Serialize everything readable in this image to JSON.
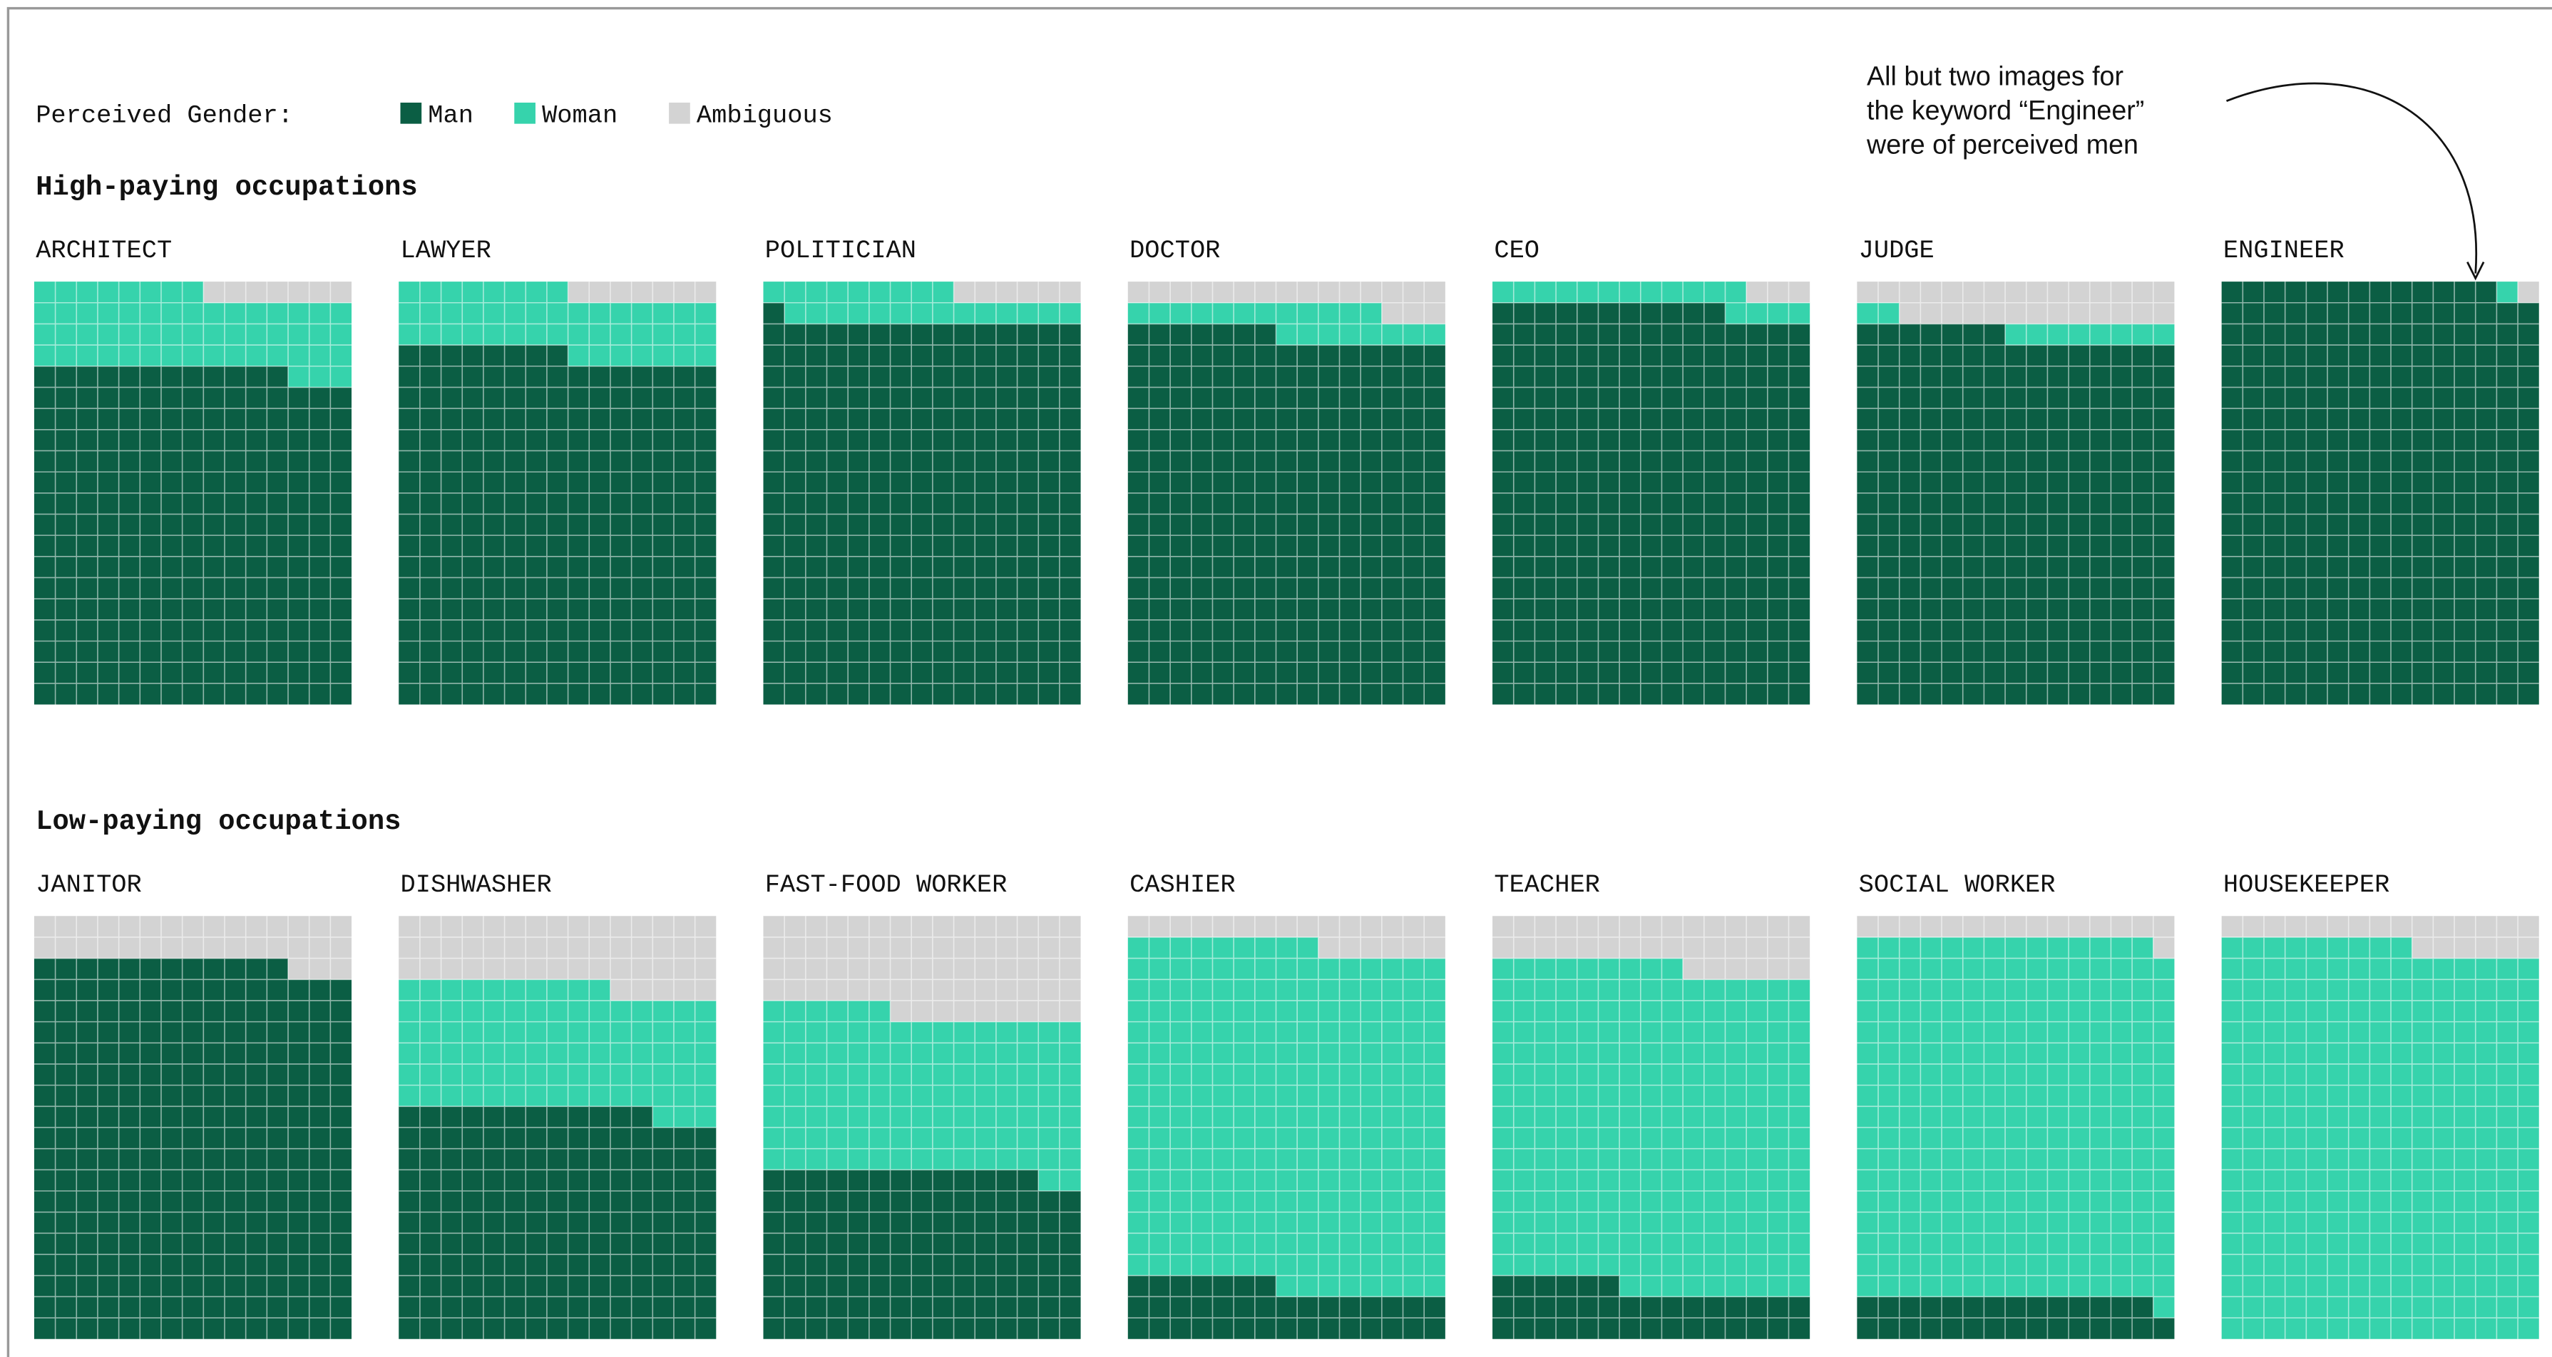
{
  "chart_data": {
    "type": "waffle",
    "legend_label": "Perceived Gender:",
    "series": [
      {
        "name": "Man",
        "color": "#0b5e44"
      },
      {
        "name": "Woman",
        "color": "#36d3ac"
      },
      {
        "name": "Ambiguous",
        "color": "#d3d3d3"
      }
    ],
    "annotation": [
      "All but two images for",
      "the keyword “Engineer”",
      "were of perceived men"
    ],
    "panels": [
      {
        "title": "High-paying occupations",
        "categories": [
          "ARCHITECT",
          "LAWYER",
          "POLITICIAN",
          "DOCTOR",
          "CEO",
          "JUDGE",
          "ENGINEER"
        ],
        "values": [
          [
            237,
            56,
            7
          ],
          [
            248,
            45,
            7
          ],
          [
            271,
            23,
            6
          ],
          [
            262,
            20,
            18
          ],
          [
            281,
            16,
            3
          ],
          [
            262,
            10,
            28
          ],
          [
            298,
            1,
            1
          ]
        ]
      },
      {
        "title": "Low-paying occupations",
        "categories": [
          "JANITOR",
          "DISHWASHER",
          "FAST-FOOD WORKER",
          "CASHIER",
          "TEACHER",
          "SOCIAL WORKER",
          "HOUSEKEEPER"
        ],
        "values": [
          [
            267,
            0,
            33
          ],
          [
            162,
            88,
            50
          ],
          [
            118,
            113,
            69
          ],
          [
            37,
            242,
            21
          ],
          [
            36,
            228,
            36
          ],
          [
            29,
            255,
            16
          ],
          [
            0,
            279,
            21
          ]
        ]
      }
    ]
  }
}
